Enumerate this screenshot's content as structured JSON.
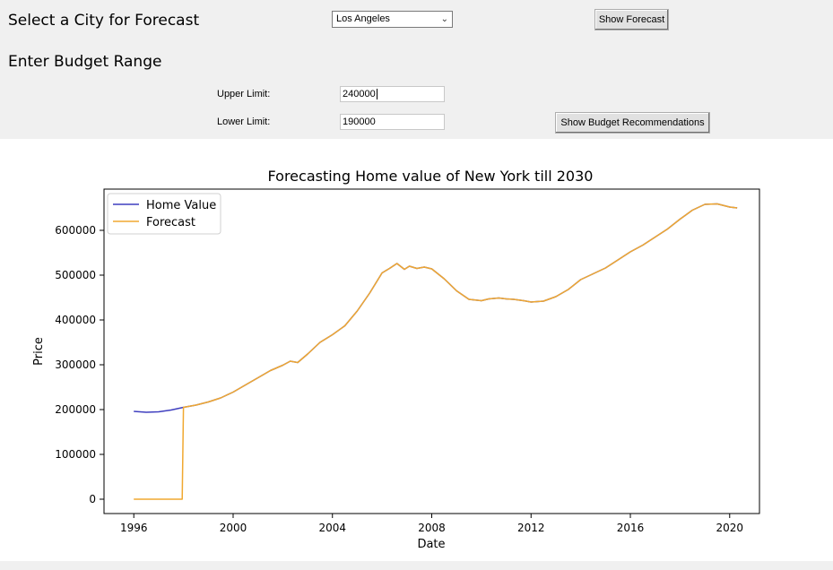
{
  "controls": {
    "city_heading": "Select a City for Forecast",
    "city_selected": "Los Angeles",
    "show_forecast_label": "Show Forecast",
    "budget_heading": "Enter Budget Range",
    "upper_label": "Upper Limit:",
    "upper_value": "240000",
    "lower_label": "Lower Limit:",
    "lower_value": "190000",
    "show_budget_label": "Show Budget Recommendations"
  },
  "colors": {
    "home_value": "#3f3fbf",
    "forecast": "#f0a830",
    "panel_bg": "#f0f0f0"
  },
  "chart_data": {
    "type": "line",
    "title": "Forecasting Home value of New York till 2030",
    "xlabel": "Date",
    "ylabel": "Price",
    "xlim": [
      1994.8,
      2021.2
    ],
    "ylim": [
      -32000,
      692000
    ],
    "xticks": [
      1996,
      2000,
      2004,
      2008,
      2012,
      2016,
      2020
    ],
    "xtick_labels": [
      "1996",
      "2000",
      "2004",
      "2008",
      "2012",
      "2016",
      "2020"
    ],
    "yticks": [
      0,
      100000,
      200000,
      300000,
      400000,
      500000,
      600000
    ],
    "ytick_labels": [
      "0",
      "100000",
      "200000",
      "300000",
      "400000",
      "500000",
      "600000"
    ],
    "grid": false,
    "legend_position": "top-left",
    "series": [
      {
        "name": "Home Value",
        "color": "#3f3fbf",
        "x": [
          1996,
          1996.5,
          1997,
          1997.5,
          1998,
          1998.5,
          1999,
          1999.5,
          2000,
          2000.5,
          2001,
          2001.5,
          2002,
          2002.3,
          2002.6,
          2003,
          2003.5,
          2004,
          2004.5,
          2005,
          2005.5,
          2006,
          2006.3,
          2006.6,
          2006.9,
          2007.1,
          2007.4,
          2007.7,
          2008,
          2008.5,
          2009,
          2009.5,
          2010,
          2010.3,
          2010.7,
          2011,
          2011.3,
          2011.7,
          2012,
          2012.5,
          2013,
          2013.5,
          2014,
          2014.5,
          2015,
          2015.5,
          2016,
          2016.5,
          2017,
          2017.5,
          2018,
          2018.5,
          2019,
          2019.5,
          2020,
          2020.3
        ],
        "y": [
          196000,
          194000,
          195000,
          199000,
          205000,
          210000,
          217000,
          226000,
          239000,
          255000,
          271000,
          287000,
          299000,
          308000,
          305000,
          324000,
          350000,
          367000,
          387000,
          420000,
          460000,
          505000,
          515000,
          526000,
          513000,
          520000,
          515000,
          518000,
          514000,
          492000,
          465000,
          446000,
          443000,
          447000,
          449000,
          447000,
          446000,
          443000,
          440000,
          442000,
          452000,
          468000,
          490000,
          503000,
          516000,
          534000,
          552000,
          567000,
          585000,
          603000,
          625000,
          645000,
          658000,
          659000,
          652000,
          650000
        ]
      },
      {
        "name": "Forecast",
        "color": "#f0a830",
        "x": [
          1996,
          1997.95,
          1998,
          1998.5,
          1999,
          1999.5,
          2000,
          2000.5,
          2001,
          2001.5,
          2002,
          2002.3,
          2002.6,
          2003,
          2003.5,
          2004,
          2004.5,
          2005,
          2005.5,
          2006,
          2006.3,
          2006.6,
          2006.9,
          2007.1,
          2007.4,
          2007.7,
          2008,
          2008.5,
          2009,
          2009.5,
          2010,
          2010.3,
          2010.7,
          2011,
          2011.3,
          2011.7,
          2012,
          2012.5,
          2013,
          2013.5,
          2014,
          2014.5,
          2015,
          2015.5,
          2016,
          2016.5,
          2017,
          2017.5,
          2018,
          2018.5,
          2019,
          2019.5,
          2020,
          2020.3
        ],
        "y": [
          0,
          0,
          205000,
          210000,
          217000,
          226000,
          239000,
          255000,
          271000,
          287000,
          299000,
          308000,
          305000,
          324000,
          350000,
          367000,
          387000,
          420000,
          460000,
          505000,
          515000,
          526000,
          513000,
          520000,
          515000,
          518000,
          514000,
          492000,
          465000,
          446000,
          443000,
          447000,
          449000,
          447000,
          446000,
          443000,
          440000,
          442000,
          452000,
          468000,
          490000,
          503000,
          516000,
          534000,
          552000,
          567000,
          585000,
          603000,
          625000,
          645000,
          658000,
          659000,
          652000,
          650000
        ]
      }
    ]
  }
}
